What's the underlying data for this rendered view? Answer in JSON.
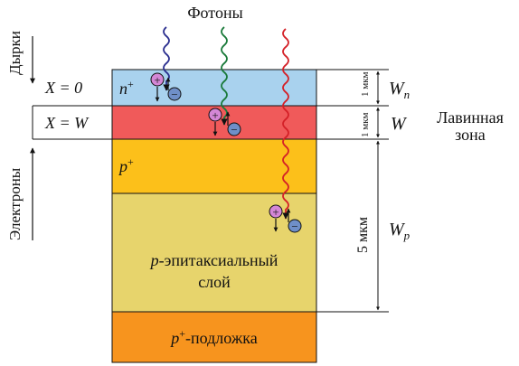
{
  "title": "Фотоны",
  "side_labels": {
    "holes": "Дырки",
    "electrons": "Электроны"
  },
  "x_labels": {
    "x0": "X = 0",
    "xw": "X = W"
  },
  "layers": {
    "n_plus": {
      "label": "n",
      "sup": "+",
      "color": "#a9d2ee"
    },
    "avalanche": {
      "color": "#f05a5a"
    },
    "p_plus": {
      "label": "p",
      "sup": "+",
      "color": "#fcc01a"
    },
    "p_epi": {
      "label_line1_ital": "p",
      "label_line1": "-эпитаксиальный",
      "label_line2": "слой",
      "color": "#e7d46c"
    },
    "substrate": {
      "label_ital": "p",
      "sup": "+",
      "label": "-подложка",
      "color": "#f7941e"
    }
  },
  "dimensions": {
    "wn_thickness": "1 мкм",
    "w_thickness": "1 мкм",
    "wp_thickness": "5 мкм"
  },
  "width_labels": {
    "wn": {
      "main": "W",
      "sub": "n"
    },
    "w": {
      "main": "W"
    },
    "wp": {
      "main": "W",
      "sub": "p"
    }
  },
  "zone_label": {
    "line1": "Лавинная",
    "line2": "зона"
  },
  "photon_colors": [
    "#2b2f8f",
    "#1a7a3a",
    "#d42027"
  ],
  "charge_colors": {
    "hole": "#d487d6",
    "electron": "#6f8fc8"
  },
  "charge_symbols": {
    "hole": "+",
    "electron": "−"
  }
}
